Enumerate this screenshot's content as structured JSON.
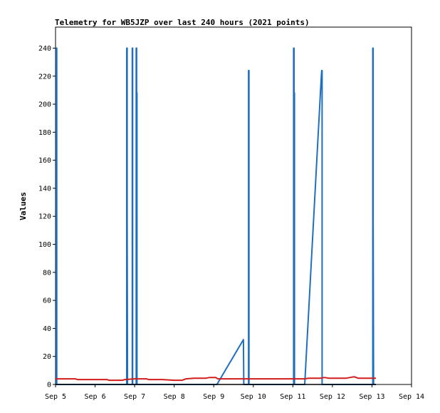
{
  "chart_data": {
    "type": "line",
    "title": "Telemetry for WB5JZP over last 240 hours (2021 points)",
    "xlabel": "",
    "ylabel": "Values",
    "x_unit": "days",
    "xlim": [
      5,
      14
    ],
    "ylim": [
      0,
      255
    ],
    "x_ticks": [
      5,
      6,
      7,
      8,
      9,
      10,
      11,
      12,
      13,
      14
    ],
    "x_tick_labels": [
      "Sep 5",
      "Sep 6",
      "Sep 7",
      "Sep 8",
      "Sep 9",
      "Sep 10",
      "Sep 11",
      "Sep 12",
      "Sep 13",
      "Sep 14"
    ],
    "y_ticks": [
      0,
      20,
      40,
      60,
      80,
      100,
      120,
      140,
      160,
      180,
      200,
      220,
      240
    ],
    "grid": false,
    "legend": "none",
    "series": [
      {
        "color": "#1f6fbf",
        "points": [
          [
            5.0,
            0
          ],
          [
            5.02,
            0
          ],
          [
            5.02,
            240
          ],
          [
            5.03,
            240
          ],
          [
            5.03,
            0
          ],
          [
            6.8,
            0
          ],
          [
            6.8,
            240
          ],
          [
            6.81,
            240
          ],
          [
            6.81,
            120
          ],
          [
            6.82,
            0
          ],
          [
            6.94,
            0
          ],
          [
            6.94,
            240
          ],
          [
            6.95,
            240
          ],
          [
            6.95,
            0
          ],
          [
            7.04,
            0
          ],
          [
            7.04,
            240
          ],
          [
            7.05,
            240
          ],
          [
            7.05,
            208
          ],
          [
            7.06,
            208
          ],
          [
            7.06,
            0
          ],
          [
            9.08,
            0
          ],
          [
            9.75,
            32
          ],
          [
            9.76,
            0
          ],
          [
            9.88,
            0
          ],
          [
            9.88,
            224
          ],
          [
            9.89,
            224
          ],
          [
            9.89,
            0
          ],
          [
            11.02,
            0
          ],
          [
            11.02,
            240
          ],
          [
            11.03,
            240
          ],
          [
            11.03,
            208
          ],
          [
            11.04,
            208
          ],
          [
            11.04,
            0
          ],
          [
            11.3,
            0
          ],
          [
            11.72,
            220
          ],
          [
            11.73,
            224
          ],
          [
            11.74,
            224
          ],
          [
            11.74,
            0
          ],
          [
            13.02,
            0
          ],
          [
            13.02,
            240
          ],
          [
            13.03,
            240
          ],
          [
            13.03,
            120
          ],
          [
            13.04,
            0
          ],
          [
            13.1,
            0
          ]
        ]
      },
      {
        "color": "#d11d1d",
        "points": [
          [
            5.0,
            4
          ],
          [
            5.5,
            4
          ],
          [
            5.55,
            3.5
          ],
          [
            6.3,
            3.5
          ],
          [
            6.35,
            3
          ],
          [
            6.7,
            3
          ],
          [
            6.75,
            3.5
          ],
          [
            7.0,
            4
          ],
          [
            7.3,
            4
          ],
          [
            7.35,
            3.5
          ],
          [
            7.7,
            3.5
          ],
          [
            8.0,
            3
          ],
          [
            8.2,
            3
          ],
          [
            8.3,
            4
          ],
          [
            8.5,
            4.5
          ],
          [
            8.8,
            4.5
          ],
          [
            8.9,
            5
          ],
          [
            9.05,
            5
          ],
          [
            9.1,
            4
          ],
          [
            9.5,
            4
          ],
          [
            10.0,
            4
          ],
          [
            10.5,
            4
          ],
          [
            11.0,
            4
          ],
          [
            11.3,
            4
          ],
          [
            11.4,
            4.5
          ],
          [
            11.7,
            4.5
          ],
          [
            11.8,
            5
          ],
          [
            11.9,
            4.5
          ],
          [
            12.2,
            4.5
          ],
          [
            12.35,
            4.5
          ],
          [
            12.45,
            5
          ],
          [
            12.55,
            5.5
          ],
          [
            12.65,
            4.5
          ],
          [
            12.9,
            4.5
          ],
          [
            13.1,
            4.5
          ]
        ]
      },
      {
        "color": "#000000",
        "points": [
          [
            5.0,
            0
          ],
          [
            13.1,
            0
          ]
        ]
      }
    ]
  }
}
